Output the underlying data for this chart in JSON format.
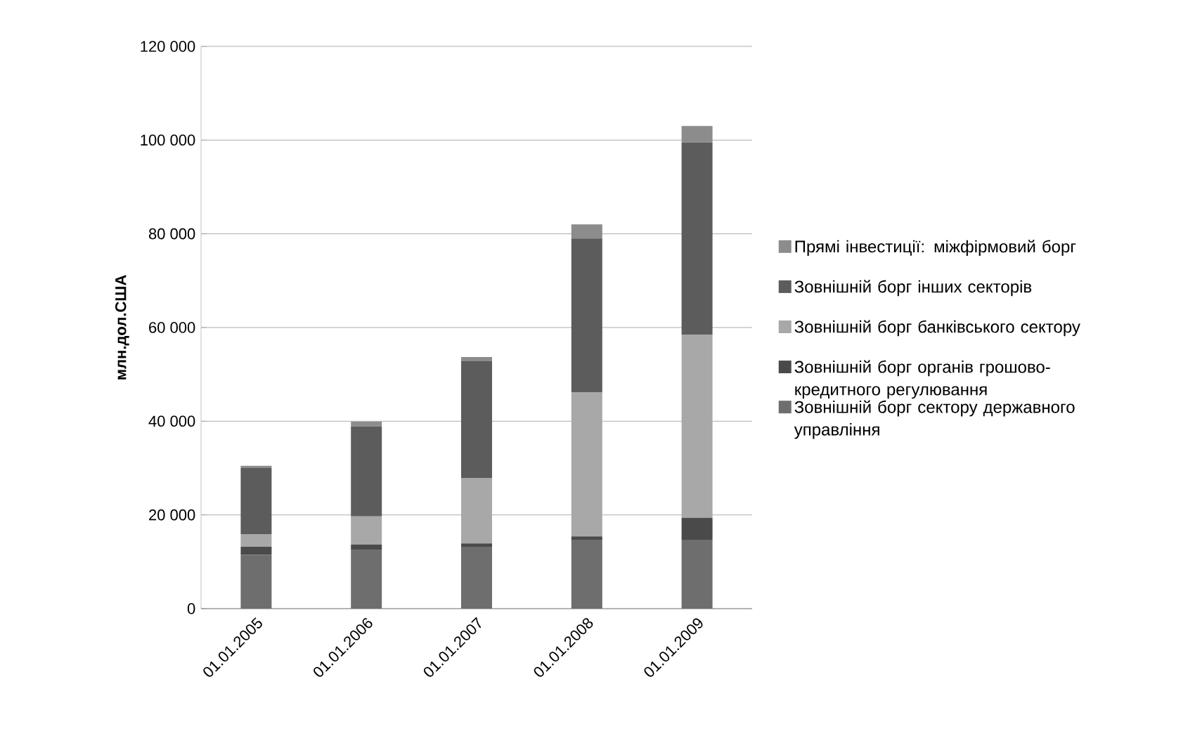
{
  "chart_data": {
    "type": "bar",
    "stacked": true,
    "ylabel": "млн.дол.США",
    "categories": [
      "01.01.2005",
      "01.01.2006",
      "01.01.2007",
      "01.01.2008",
      "01.01.2009"
    ],
    "series": [
      {
        "name": "Зовнішній борг сектору державного управління",
        "color": "#6e6e6e",
        "values": [
          11500,
          12500,
          13200,
          14700,
          14700
        ]
      },
      {
        "name": "Зовнішній борг органів грошово-кредитного регулювання",
        "color": "#4a4a4a",
        "values": [
          1700,
          1200,
          700,
          700,
          4700
        ]
      },
      {
        "name": "Зовнішній борг банківського сектору",
        "color": "#a8a8a8",
        "values": [
          2700,
          6000,
          14000,
          30800,
          39100
        ]
      },
      {
        "name": "Зовнішній борг інших секторів",
        "color": "#5c5c5c",
        "values": [
          14100,
          19200,
          24900,
          32800,
          41000
        ]
      },
      {
        "name": "Прямі інвестиції: міжфірмовий борг",
        "color": "#8c8c8c",
        "values": [
          500,
          1000,
          900,
          3000,
          3500
        ]
      }
    ],
    "ylim": [
      0,
      120000
    ],
    "yticks": [
      0,
      {
        "value": 20000,
        "label": "20 000"
      },
      {
        "value": 40000,
        "label": "40 000"
      },
      {
        "value": 60000,
        "label": "60 000"
      },
      {
        "value": 80000,
        "label": "80 000"
      },
      {
        "value": 100000,
        "label": "100 000"
      },
      {
        "value": 120000,
        "label": "120 000"
      }
    ],
    "grid": "y",
    "legend": "right"
  }
}
